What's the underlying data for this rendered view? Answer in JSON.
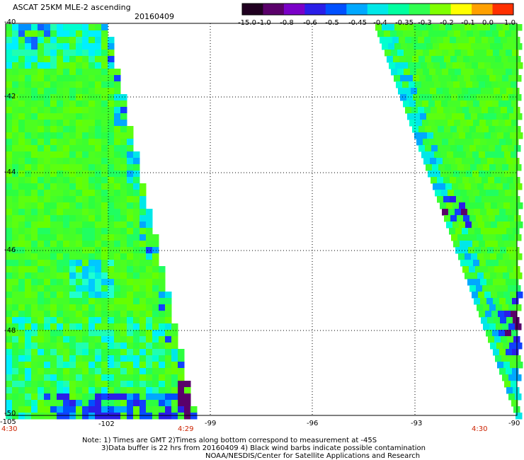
{
  "header": {
    "title": "ASCAT 25KM MLE-2 ascending",
    "date": "20160409"
  },
  "colorbar": {
    "tick_labels": [
      "-15.0",
      "-1.0",
      "-0.8",
      "-0.6",
      "-0.5",
      "-0.45",
      "-0.4",
      "-0.35",
      "-0.3",
      "-0.2",
      "-0.1",
      "0.0",
      "1.0"
    ],
    "colors": [
      "#200020",
      "#5a006a",
      "#7a00c8",
      "#2a1ee8",
      "#0050ff",
      "#00a8ff",
      "#00e8e8",
      "#00ffa0",
      "#30ff50",
      "#80ff00",
      "#ffff00",
      "#ffa000",
      "#ff3000"
    ]
  },
  "map": {
    "lat_labels": [
      "-40",
      "-42",
      "-44",
      "-46",
      "-48",
      "-50"
    ],
    "lon_labels": [
      "-105",
      "-102",
      "-99",
      "-96",
      "-93",
      "-90"
    ],
    "time_labels": {
      "left_start": "4:30",
      "left_end": "4:29",
      "right_start": "4:30"
    }
  },
  "notes": {
    "line1": "Note: 1) Times are GMT 2)Times along bottom correspond to measurement at -45S",
    "line2": "3)Data buffer is 22 hrs from 20160409 4) Black wind barbs indicate possible contamination",
    "line3": "NOAA/NESDIS/Center for Satellite Applications and Research"
  }
}
